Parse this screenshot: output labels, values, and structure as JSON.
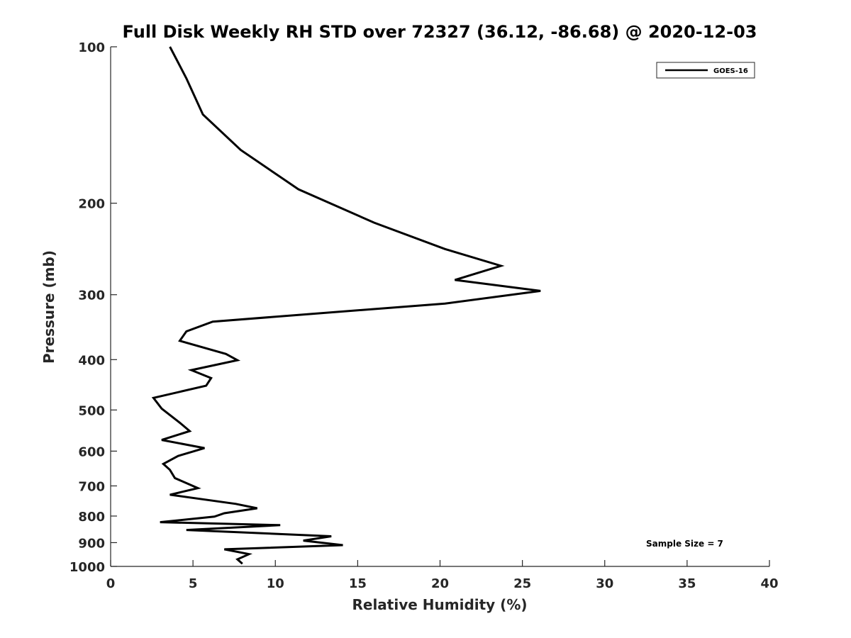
{
  "chart_data": {
    "type": "line",
    "title": "Full Disk Weekly RH STD over 72327 (36.12, -86.68) @ 2020-12-03",
    "xlabel": "Relative Humidity (%)",
    "ylabel": "Pressure (mb)",
    "xlim": [
      0,
      40
    ],
    "ylim": [
      100,
      1000
    ],
    "yscale": "log",
    "reverse_y": true,
    "xticks": [
      0,
      5,
      10,
      15,
      20,
      25,
      30,
      35,
      40
    ],
    "yticks": [
      100,
      200,
      300,
      400,
      500,
      600,
      700,
      800,
      900,
      1000
    ],
    "legend": {
      "entries": [
        "GOES-16"
      ],
      "position": "top-right"
    },
    "annotation": "Sample Size = 7",
    "series": [
      {
        "name": "GOES-16",
        "color": "#000000",
        "points": [
          [
            3.6,
            100
          ],
          [
            4.6,
            115
          ],
          [
            5.6,
            135
          ],
          [
            7.9,
            158
          ],
          [
            11.4,
            188
          ],
          [
            16.0,
            218
          ],
          [
            20.3,
            245
          ],
          [
            23.7,
            264
          ],
          [
            20.9,
            281
          ],
          [
            26.1,
            295
          ],
          [
            20.3,
            312
          ],
          [
            6.2,
            338
          ],
          [
            4.6,
            353
          ],
          [
            4.2,
            368
          ],
          [
            7.0,
            390
          ],
          [
            7.7,
            401
          ],
          [
            4.9,
            419
          ],
          [
            6.1,
            434
          ],
          [
            5.8,
            449
          ],
          [
            2.6,
            474
          ],
          [
            3.1,
            497
          ],
          [
            4.2,
            529
          ],
          [
            4.8,
            549
          ],
          [
            3.1,
            571
          ],
          [
            5.7,
            592
          ],
          [
            4.1,
            613
          ],
          [
            3.2,
            635
          ],
          [
            3.6,
            652
          ],
          [
            3.9,
            676
          ],
          [
            5.3,
            707
          ],
          [
            3.6,
            728
          ],
          [
            7.6,
            758
          ],
          [
            8.9,
            773
          ],
          [
            6.9,
            790
          ],
          [
            6.3,
            802
          ],
          [
            3.0,
            822
          ],
          [
            10.3,
            833
          ],
          [
            4.6,
            851
          ],
          [
            13.4,
            875
          ],
          [
            11.7,
            892
          ],
          [
            14.1,
            910
          ],
          [
            6.9,
            927
          ],
          [
            8.4,
            947
          ],
          [
            7.7,
            969
          ],
          [
            8.0,
            988
          ]
        ]
      }
    ]
  }
}
